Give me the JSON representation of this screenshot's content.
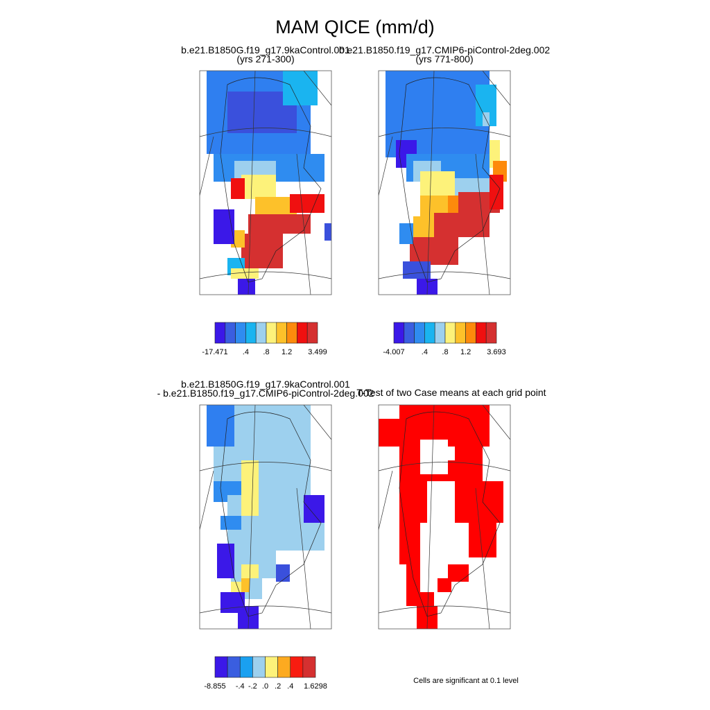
{
  "title": "MAM QICE (mm/d)",
  "panels": [
    {
      "title": [
        "b.e21.B1850G.f19_g17.9kaControl.001",
        "(yrs 271-300)"
      ],
      "colorbar": {
        "colors": [
          "#3b18e8",
          "#3a5ee0",
          "#2f8cf0",
          "#1ab4f0",
          "#9dd0ee",
          "#fdf27a",
          "#fdc12a",
          "#fd8a0c",
          "#f01010",
          "#d53030"
        ],
        "labels": [
          "-17.471",
          ".4",
          ".8",
          "1.2",
          "3.499"
        ]
      }
    },
    {
      "title": [
        "b.e21.B1850.f19_g17.CMIP6-piControl-2deg.002",
        "(yrs 771-800)"
      ],
      "colorbar": {
        "colors": [
          "#3b18e8",
          "#3a5ee0",
          "#2f8cf0",
          "#1ab4f0",
          "#9dd0ee",
          "#fdf27a",
          "#fdc12a",
          "#fd8a0c",
          "#f01010",
          "#d53030"
        ],
        "labels": [
          "-4.007",
          ".4",
          ".8",
          "1.2",
          "3.693"
        ]
      }
    },
    {
      "title": [
        "b.e21.B1850G.f19_g17.9kaControl.001",
        "- b.e21.B1850.f19_g17.CMIP6-piControl-2deg.002"
      ],
      "colorbar": {
        "colors": [
          "#3b18e8",
          "#3a5ee0",
          "#1aa0f0",
          "#9dd0ee",
          "#fdf27a",
          "#fdaa20",
          "#f81c10",
          "#d53030"
        ],
        "labels": [
          "-8.855",
          "-.4",
          "-.2",
          ".0",
          ".2",
          ".4",
          "1.6298"
        ]
      }
    },
    {
      "title": [
        "T-Test of two Case means at each grid point"
      ]
    }
  ],
  "footnote": "Cells are significant at 0.1 level"
}
